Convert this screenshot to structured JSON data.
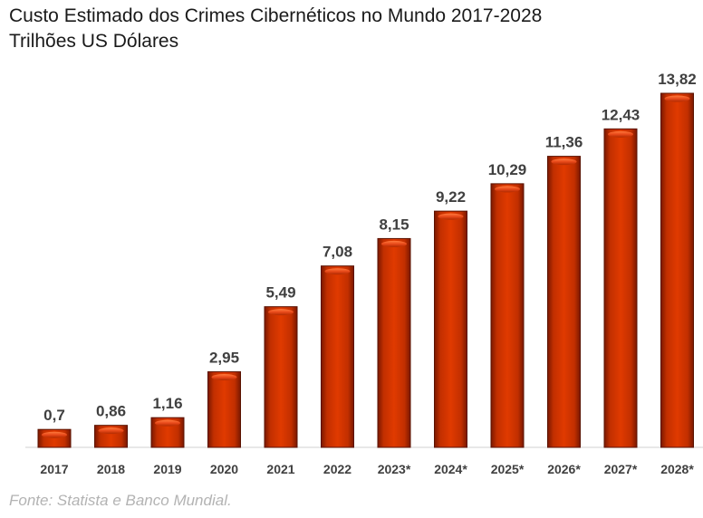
{
  "title_line1": "Custo Estimado dos Crimes Cibernéticos no Mundo 2017-2028",
  "title_line2": "Trilhões US Dólares",
  "source": "Fonte: Statista e Banco Mundial.",
  "chart_data": {
    "type": "bar",
    "title": "Custo Estimado dos Crimes Cibernéticos no Mundo 2017-2028",
    "subtitle": "Trilhões US Dólares",
    "categories": [
      "2017",
      "2018",
      "2019",
      "2020",
      "2021",
      "2022",
      "2023*",
      "2024*",
      "2025*",
      "2026*",
      "2027*",
      "2028*"
    ],
    "values": [
      0.7,
      0.86,
      1.16,
      2.95,
      5.49,
      7.08,
      8.15,
      9.22,
      10.29,
      11.36,
      12.43,
      13.82
    ],
    "labels": [
      "0,7",
      "0,86",
      "1,16",
      "2,95",
      "5,49",
      "7,08",
      "8,15",
      "9,22",
      "10,29",
      "11,36",
      "12,43",
      "13,82"
    ],
    "xlabel": "",
    "ylabel": "",
    "ylim": [
      0,
      13.82
    ],
    "grid": false,
    "bar_color": "#cc3300"
  }
}
